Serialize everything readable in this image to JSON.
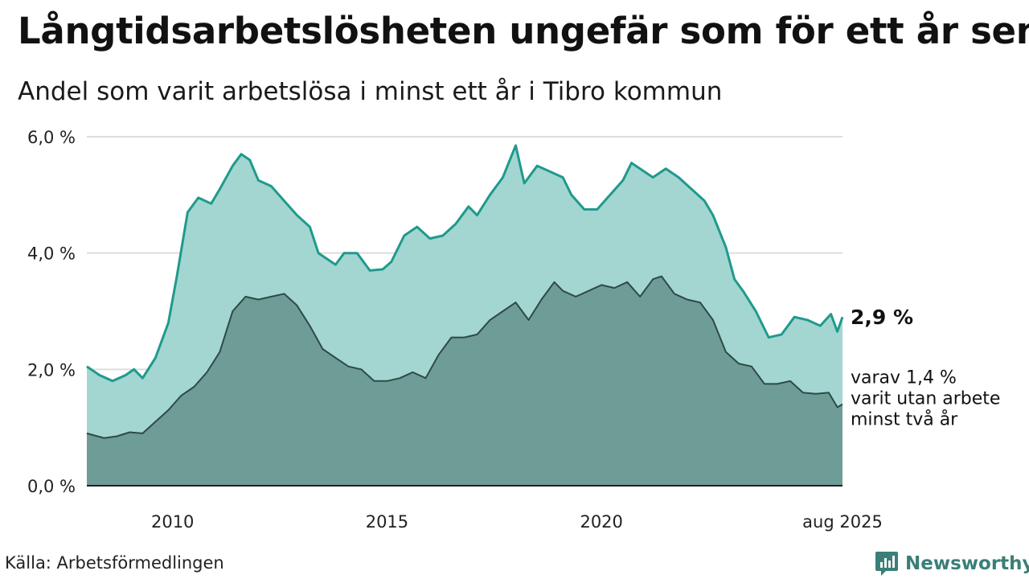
{
  "title": "Långtidsarbetslösheten ungefär som för ett år sen",
  "subtitle": "Andel som varit arbetslösa i minst ett år i Tibro kommun",
  "source": "Källa: Arbetsförmedlingen",
  "brand": "Newsworthy",
  "colors": {
    "upper_fill": "#a3d6d1",
    "upper_line": "#1f9a8c",
    "lower_fill": "#6e9c96",
    "lower_line": "#2e4a46",
    "grid": "#dddddd",
    "baseline": "#222222",
    "brand": "#3a7f78"
  },
  "chart_data": {
    "type": "area",
    "x_label_ticks": [
      "2010",
      "2015",
      "2020",
      "aug 2025"
    ],
    "y_ticks": [
      "0,0 %",
      "2,0 %",
      "4,0 %",
      "6,0 %"
    ],
    "ylim": [
      0,
      6
    ],
    "grid": true,
    "xlim": [
      2008.0,
      2025.62
    ],
    "end_label": "2,9 %",
    "sub_label_lines": [
      "varav 1,4 %",
      "varit utan arbete",
      "minst två år"
    ],
    "series": [
      {
        "name": "minst ett år",
        "points": [
          [
            2008.0,
            2.05
          ],
          [
            2008.3,
            1.9
          ],
          [
            2008.6,
            1.8
          ],
          [
            2008.9,
            1.9
          ],
          [
            2009.1,
            2.0
          ],
          [
            2009.3,
            1.85
          ],
          [
            2009.6,
            2.2
          ],
          [
            2009.9,
            2.8
          ],
          [
            2010.1,
            3.6
          ],
          [
            2010.35,
            4.7
          ],
          [
            2010.6,
            4.95
          ],
          [
            2010.9,
            4.85
          ],
          [
            2011.1,
            5.1
          ],
          [
            2011.4,
            5.5
          ],
          [
            2011.6,
            5.7
          ],
          [
            2011.8,
            5.6
          ],
          [
            2012.0,
            5.25
          ],
          [
            2012.3,
            5.15
          ],
          [
            2012.6,
            4.9
          ],
          [
            2012.9,
            4.65
          ],
          [
            2013.2,
            4.45
          ],
          [
            2013.4,
            4.0
          ],
          [
            2013.8,
            3.8
          ],
          [
            2014.0,
            4.0
          ],
          [
            2014.3,
            4.0
          ],
          [
            2014.6,
            3.7
          ],
          [
            2014.9,
            3.72
          ],
          [
            2015.1,
            3.85
          ],
          [
            2015.4,
            4.3
          ],
          [
            2015.7,
            4.45
          ],
          [
            2016.0,
            4.25
          ],
          [
            2016.3,
            4.3
          ],
          [
            2016.6,
            4.5
          ],
          [
            2016.9,
            4.8
          ],
          [
            2017.1,
            4.65
          ],
          [
            2017.4,
            5.0
          ],
          [
            2017.7,
            5.3
          ],
          [
            2018.0,
            5.85
          ],
          [
            2018.2,
            5.2
          ],
          [
            2018.5,
            5.5
          ],
          [
            2018.8,
            5.4
          ],
          [
            2019.1,
            5.3
          ],
          [
            2019.3,
            5.0
          ],
          [
            2019.6,
            4.75
          ],
          [
            2019.9,
            4.75
          ],
          [
            2020.2,
            5.0
          ],
          [
            2020.5,
            5.25
          ],
          [
            2020.7,
            5.55
          ],
          [
            2021.0,
            5.4
          ],
          [
            2021.2,
            5.3
          ],
          [
            2021.5,
            5.45
          ],
          [
            2021.8,
            5.3
          ],
          [
            2022.1,
            5.1
          ],
          [
            2022.4,
            4.9
          ],
          [
            2022.6,
            4.65
          ],
          [
            2022.9,
            4.1
          ],
          [
            2023.1,
            3.55
          ],
          [
            2023.3,
            3.35
          ],
          [
            2023.6,
            3.0
          ],
          [
            2023.9,
            2.55
          ],
          [
            2024.2,
            2.6
          ],
          [
            2024.5,
            2.9
          ],
          [
            2024.8,
            2.85
          ],
          [
            2025.1,
            2.75
          ],
          [
            2025.35,
            2.95
          ],
          [
            2025.5,
            2.65
          ],
          [
            2025.62,
            2.9
          ]
        ]
      },
      {
        "name": "minst två år",
        "points": [
          [
            2008.0,
            0.9
          ],
          [
            2008.4,
            0.82
          ],
          [
            2008.7,
            0.85
          ],
          [
            2009.0,
            0.92
          ],
          [
            2009.3,
            0.9
          ],
          [
            2009.6,
            1.1
          ],
          [
            2009.9,
            1.3
          ],
          [
            2010.2,
            1.55
          ],
          [
            2010.5,
            1.7
          ],
          [
            2010.8,
            1.95
          ],
          [
            2011.1,
            2.3
          ],
          [
            2011.4,
            3.0
          ],
          [
            2011.7,
            3.25
          ],
          [
            2012.0,
            3.2
          ],
          [
            2012.3,
            3.25
          ],
          [
            2012.6,
            3.3
          ],
          [
            2012.9,
            3.1
          ],
          [
            2013.2,
            2.75
          ],
          [
            2013.5,
            2.35
          ],
          [
            2013.8,
            2.2
          ],
          [
            2014.1,
            2.05
          ],
          [
            2014.4,
            2.0
          ],
          [
            2014.7,
            1.8
          ],
          [
            2015.0,
            1.8
          ],
          [
            2015.3,
            1.85
          ],
          [
            2015.6,
            1.95
          ],
          [
            2015.9,
            1.85
          ],
          [
            2016.2,
            2.25
          ],
          [
            2016.5,
            2.55
          ],
          [
            2016.8,
            2.55
          ],
          [
            2017.1,
            2.6
          ],
          [
            2017.4,
            2.85
          ],
          [
            2017.7,
            3.0
          ],
          [
            2018.0,
            3.15
          ],
          [
            2018.3,
            2.85
          ],
          [
            2018.6,
            3.2
          ],
          [
            2018.9,
            3.5
          ],
          [
            2019.1,
            3.35
          ],
          [
            2019.4,
            3.25
          ],
          [
            2019.7,
            3.35
          ],
          [
            2020.0,
            3.45
          ],
          [
            2020.3,
            3.4
          ],
          [
            2020.6,
            3.5
          ],
          [
            2020.9,
            3.25
          ],
          [
            2021.2,
            3.55
          ],
          [
            2021.4,
            3.6
          ],
          [
            2021.7,
            3.3
          ],
          [
            2022.0,
            3.2
          ],
          [
            2022.3,
            3.15
          ],
          [
            2022.6,
            2.85
          ],
          [
            2022.9,
            2.3
          ],
          [
            2023.2,
            2.1
          ],
          [
            2023.5,
            2.05
          ],
          [
            2023.8,
            1.75
          ],
          [
            2024.1,
            1.75
          ],
          [
            2024.4,
            1.8
          ],
          [
            2024.7,
            1.6
          ],
          [
            2025.0,
            1.58
          ],
          [
            2025.3,
            1.6
          ],
          [
            2025.5,
            1.35
          ],
          [
            2025.62,
            1.4
          ]
        ]
      }
    ]
  }
}
